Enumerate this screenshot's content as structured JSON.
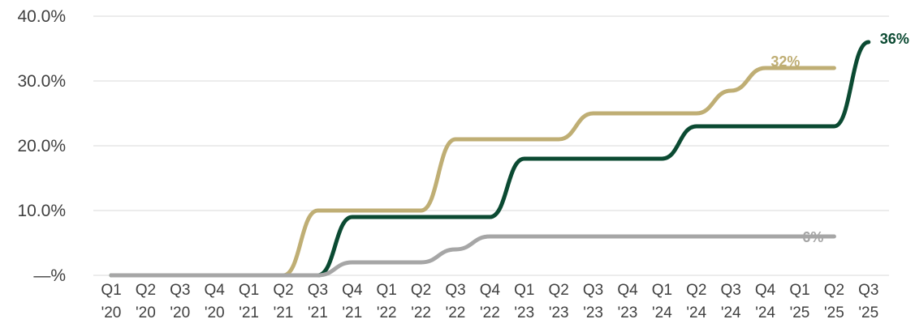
{
  "chart_data": {
    "type": "line",
    "title": "",
    "xlabel": "",
    "ylabel": "",
    "ylim": [
      0,
      40
    ],
    "grid": true,
    "legend": "none",
    "y_ticks": [
      {
        "value": 0,
        "label": "—%"
      },
      {
        "value": 10,
        "label": "10.0%"
      },
      {
        "value": 20,
        "label": "20.0%"
      },
      {
        "value": 30,
        "label": "30.0%"
      },
      {
        "value": 40,
        "label": "40.0%"
      }
    ],
    "categories": [
      {
        "q": "Q1",
        "y": "'20"
      },
      {
        "q": "Q2",
        "y": "'20"
      },
      {
        "q": "Q3",
        "y": "'20"
      },
      {
        "q": "Q4",
        "y": "'20"
      },
      {
        "q": "Q1",
        "y": "'21"
      },
      {
        "q": "Q2",
        "y": "'21"
      },
      {
        "q": "Q3",
        "y": "'21"
      },
      {
        "q": "Q4",
        "y": "'21"
      },
      {
        "q": "Q1",
        "y": "'22"
      },
      {
        "q": "Q2",
        "y": "'22"
      },
      {
        "q": "Q3",
        "y": "'22"
      },
      {
        "q": "Q4",
        "y": "'22"
      },
      {
        "q": "Q1",
        "y": "'23"
      },
      {
        "q": "Q2",
        "y": "'23"
      },
      {
        "q": "Q3",
        "y": "'23"
      },
      {
        "q": "Q4",
        "y": "'23"
      },
      {
        "q": "Q1",
        "y": "'24"
      },
      {
        "q": "Q2",
        "y": "'24"
      },
      {
        "q": "Q3",
        "y": "'24"
      },
      {
        "q": "Q4",
        "y": "'24"
      },
      {
        "q": "Q1",
        "y": "'25"
      },
      {
        "q": "Q2",
        "y": "'25"
      },
      {
        "q": "Q3",
        "y": "'25"
      }
    ],
    "series": [
      {
        "color": "#bfae74",
        "end_label": "32%",
        "label_color": "#bfae74",
        "values": [
          0,
          0,
          0,
          0,
          0,
          0,
          10,
          10,
          10,
          10,
          21,
          21,
          21,
          21,
          25,
          25,
          25,
          25,
          28.5,
          32,
          32,
          32,
          null
        ]
      },
      {
        "color": "#0b4a32",
        "end_label": "36%",
        "label_color": "#0b4a32",
        "values": [
          0,
          0,
          0,
          0,
          0,
          0,
          0,
          9,
          9,
          9,
          9,
          9,
          18,
          18,
          18,
          18,
          18,
          23,
          23,
          23,
          23,
          23,
          36
        ]
      },
      {
        "color": "#a6a6a6",
        "end_label": "6%",
        "label_color": "#a6a6a6",
        "values": [
          0,
          0,
          0,
          0,
          0,
          0,
          0,
          2,
          2,
          2,
          4,
          6,
          6,
          6,
          6,
          6,
          6,
          6,
          6,
          6,
          6,
          6,
          null
        ]
      }
    ]
  }
}
